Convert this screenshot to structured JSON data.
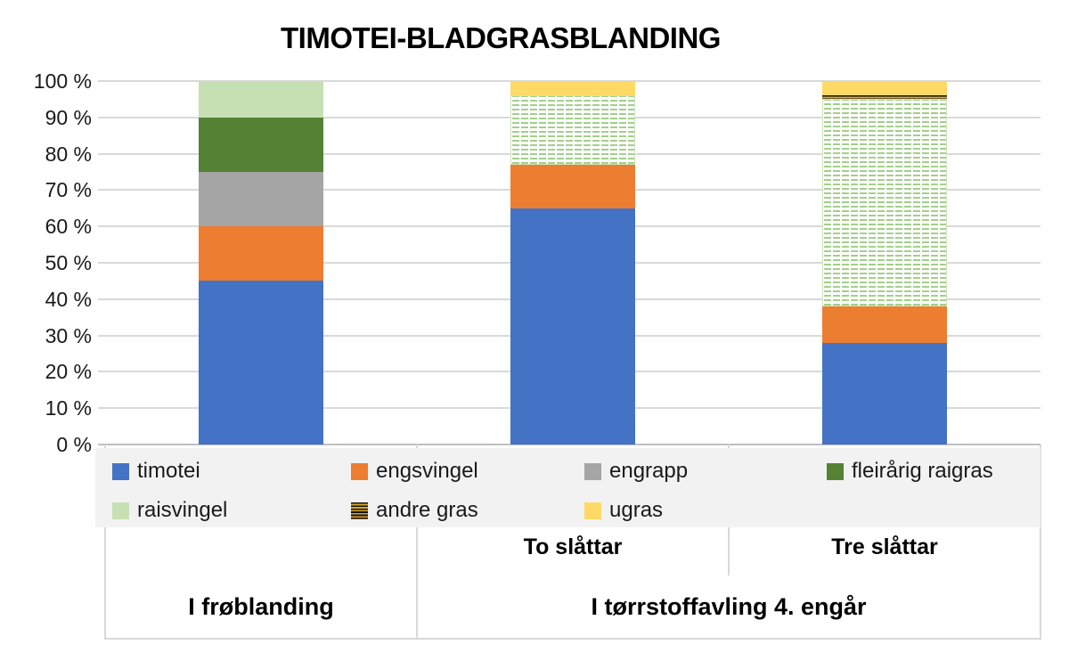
{
  "title": "TIMOTEI-BLADGRASBLANDING",
  "chart_data": {
    "type": "bar",
    "stacked": true,
    "stacked_mode": "100%",
    "unit": "%",
    "title": "TIMOTEI-BLADGRASBLANDING",
    "categories": [
      "I frøblanding",
      "To slåttar",
      "Tre slåttar"
    ],
    "series": [
      {
        "name": "timotei",
        "color": "#4472C4",
        "values": [
          45,
          65,
          28
        ]
      },
      {
        "name": "engsvingel",
        "color": "#ED7D31",
        "values": [
          15,
          12,
          10
        ]
      },
      {
        "name": "engrapp",
        "color": "#A5A5A5",
        "values": [
          15,
          0,
          0
        ]
      },
      {
        "name": "fleirårig raigras",
        "color": "#548235",
        "values": [
          15,
          0,
          0
        ]
      },
      {
        "name": "raisvingel",
        "color": "#C6E0B4",
        "values": [
          10,
          19,
          57
        ],
        "fill_by_category": [
          "solid",
          "dashes",
          "dashes"
        ],
        "pattern_color": "#A3CF8B"
      },
      {
        "name": "andre gras",
        "color": "#141414",
        "values": [
          0,
          0,
          1
        ],
        "fill": "stripes",
        "pattern_color": "#D9A62B"
      },
      {
        "name": "ugras",
        "color": "#FFD966",
        "values": [
          0,
          4,
          4
        ]
      }
    ],
    "ylim": [
      0,
      100
    ],
    "yticks": [
      "100 %",
      "90 %",
      "80 %",
      "70 %",
      "60 %",
      "50 %",
      "40 %",
      "30 %",
      "20 %",
      "10 %",
      "0 %"
    ],
    "grid": true,
    "legend_position": "bottom",
    "x_axis": {
      "sub_labels": [
        "",
        "To slåttar",
        "Tre slåttar"
      ],
      "group_labels": [
        "I frøblanding",
        "I tørrstoffavling 4. engår"
      ]
    }
  },
  "colors": {
    "gridline": "#D9D9D9",
    "axis_line": "#BFBFBF",
    "legend_background": "#F2F2F2",
    "text": "#1A1A1A",
    "pattern_dash_green": "#A3CF8B",
    "pattern_stripe_gold": "#D9A62B",
    "pattern_stripe_black": "#141414"
  }
}
